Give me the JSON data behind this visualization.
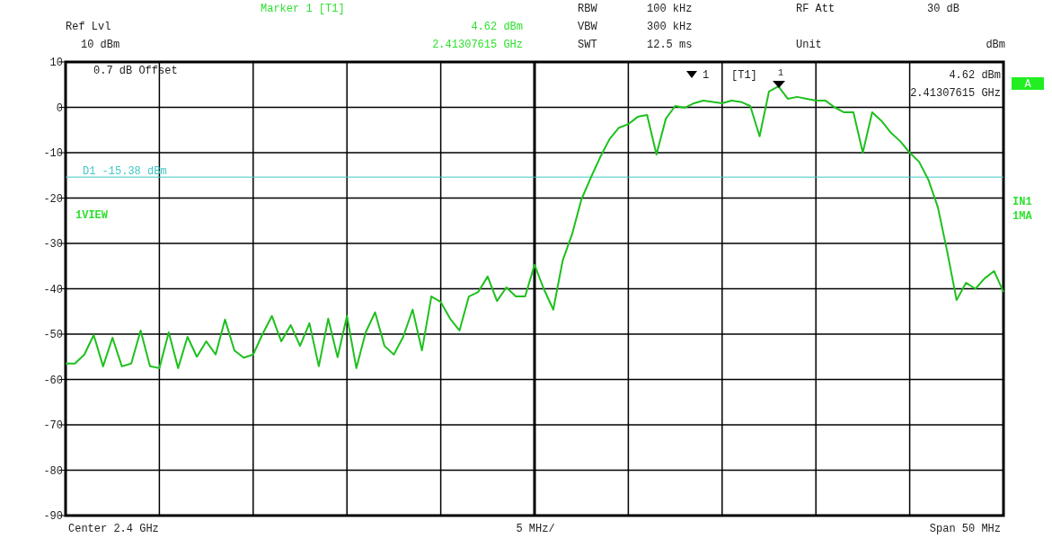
{
  "chart_data": {
    "type": "line",
    "categories": [
      null,
      null,
      null,
      null,
      null,
      null,
      null,
      null,
      null,
      null,
      null,
      null,
      null,
      null,
      null,
      null,
      null,
      null,
      null,
      null,
      null,
      null,
      null,
      null,
      null,
      null,
      null,
      null,
      null,
      null,
      null,
      null,
      null,
      null,
      null,
      null,
      null,
      null,
      null,
      null,
      null,
      null,
      null,
      null,
      null,
      null,
      null,
      null,
      null,
      null,
      null,
      null,
      null,
      null,
      null,
      null,
      null,
      null,
      null,
      null,
      null,
      null,
      null,
      null,
      null,
      null,
      null,
      null,
      null,
      null,
      null,
      null,
      null,
      null,
      null,
      null,
      null,
      null,
      null,
      null,
      null,
      null,
      null,
      null,
      null,
      null,
      null,
      null,
      null,
      null,
      null,
      null,
      null,
      null,
      null,
      null,
      null,
      null,
      null,
      null,
      null
    ],
    "ylim": [
      -90,
      10
    ],
    "yticks": [
      10,
      0,
      -10,
      -20,
      -30,
      -40,
      -50,
      -60,
      -70,
      -80,
      -90
    ],
    "grid": true,
    "marker": "none",
    "line_style": "solid",
    "series": [
      {
        "color": "#1ec01e",
        "values": [
          -56.5,
          -56.5,
          -54.5,
          -50.2,
          -57.1,
          -50.8,
          -57.1,
          -56.5,
          -49.2,
          -57.1,
          -57.5,
          -49.6,
          -57.5,
          -50.6,
          -55,
          -51.6,
          -54.5,
          -46.8,
          -53.6,
          -55.2,
          -54.5,
          -50,
          -46,
          -51.6,
          -48,
          -52.6,
          -47.6,
          -57.1,
          -46.6,
          -55.1,
          -46,
          -57.5,
          -49.6,
          -45.2,
          -52.6,
          -54.5,
          -50.6,
          -44.6,
          -53.6,
          -41.7,
          -42.9,
          -46.6,
          -49.2,
          -41.7,
          -40.7,
          -37.3,
          -42.7,
          -39.7,
          -41.7,
          -41.7,
          -34.7,
          -40.1,
          -44.6,
          -33.8,
          -28,
          -20.3,
          -15.5,
          -11,
          -7,
          -4.5,
          -3.7,
          -2.1,
          -1.7,
          -10.4,
          -2.5,
          0.3,
          -0.1,
          0.9,
          1.5,
          1.2,
          0.9,
          1.5,
          1.2,
          0.3,
          -6.4,
          3.5,
          4.62,
          1.9,
          2.3,
          1.9,
          1.5,
          1.5,
          0,
          -1.1,
          -1.1,
          -10,
          -1.1,
          -3,
          -5.6,
          -7.5,
          -10,
          -12,
          -16,
          -22,
          -31.8,
          -42.5,
          -38.7,
          -40,
          -37.7,
          -36.1,
          -40.7
        ]
      }
    ],
    "ref_lines": [
      {
        "axis": "y",
        "value": -15.38,
        "label": "D1 -15.38 dBm",
        "color": "#40c8c8"
      }
    ],
    "annotations": [
      "Marker 1 [T1]",
      "4.62 dBm",
      "2.41307615 GHz",
      "RBW",
      "100 kHz",
      "RF Att",
      "30 dB",
      "Ref Lvl",
      "10 dBm",
      "VBW",
      "300 kHz",
      "SWT",
      "12.5 ms",
      "Unit",
      "dBm",
      "0.7 dB Offset",
      "1VIEW",
      "1",
      "[T1]",
      "1",
      "4.62 dBm",
      "2.41307615 GHz",
      "A",
      "IN1",
      "1MA",
      "Center 2.4 GHz",
      "5 MHz/",
      "Span 50 MHz"
    ]
  }
}
